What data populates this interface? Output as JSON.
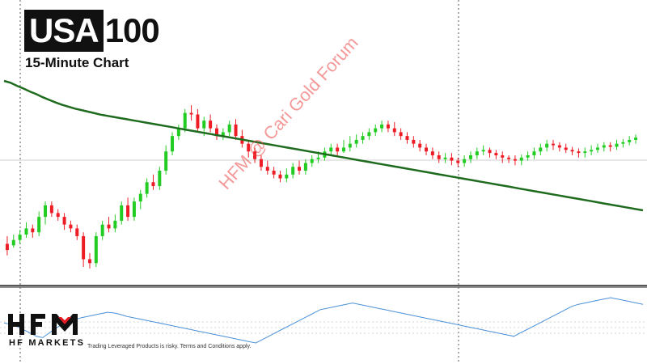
{
  "header": {
    "title_dark": "USA",
    "title_light": "100",
    "subtitle": "15-Minute Chart"
  },
  "watermark": "HFM @ Cari Gold Forum",
  "logo": {
    "name": "HFM",
    "sub": "HF MARKETS"
  },
  "disclaimer": "Trading Leveraged Products is risky. Terms and Conditions apply.",
  "chart_data": [
    {
      "type": "candlestick",
      "title": "USA100",
      "subtitle": "15-Minute Chart",
      "colors": {
        "up": "#22cc22",
        "down": "#ee1c25",
        "ma": "#1e6b1e"
      },
      "grid": false,
      "reference_line": "dotted horizontal",
      "vertical_markers": 2,
      "candles": [
        [
          0,
          150,
          142,
          160,
          135
        ],
        [
          1,
          148,
          155,
          162,
          145
        ],
        [
          2,
          155,
          162,
          168,
          150
        ],
        [
          3,
          162,
          170,
          178,
          158
        ],
        [
          4,
          170,
          165,
          175,
          158
        ],
        [
          5,
          165,
          185,
          192,
          160
        ],
        [
          6,
          185,
          200,
          205,
          175
        ],
        [
          7,
          200,
          190,
          205,
          185
        ],
        [
          8,
          190,
          185,
          195,
          180
        ],
        [
          9,
          185,
          175,
          190,
          168
        ],
        [
          10,
          175,
          170,
          180,
          165
        ],
        [
          11,
          170,
          160,
          175,
          155
        ],
        [
          12,
          160,
          130,
          165,
          120
        ],
        [
          13,
          130,
          125,
          138,
          118
        ],
        [
          14,
          125,
          160,
          165,
          120
        ],
        [
          15,
          160,
          175,
          180,
          155
        ],
        [
          16,
          175,
          170,
          185,
          165
        ],
        [
          17,
          170,
          180,
          188,
          165
        ],
        [
          18,
          180,
          200,
          205,
          175
        ],
        [
          19,
          200,
          185,
          210,
          180
        ],
        [
          20,
          185,
          205,
          210,
          180
        ],
        [
          21,
          205,
          215,
          220,
          195
        ],
        [
          22,
          215,
          230,
          235,
          210
        ],
        [
          23,
          230,
          225,
          240,
          220
        ],
        [
          24,
          225,
          245,
          250,
          220
        ],
        [
          25,
          245,
          270,
          278,
          240
        ],
        [
          26,
          270,
          290,
          295,
          265
        ],
        [
          27,
          290,
          300,
          305,
          285
        ],
        [
          28,
          300,
          320,
          325,
          295
        ],
        [
          29,
          320,
          318,
          330,
          310
        ],
        [
          30,
          318,
          300,
          325,
          295
        ],
        [
          31,
          300,
          310,
          315,
          290
        ],
        [
          32,
          310,
          300,
          318,
          295
        ],
        [
          33,
          300,
          290,
          305,
          285
        ],
        [
          34,
          290,
          295,
          300,
          285
        ],
        [
          35,
          295,
          305,
          310,
          290
        ],
        [
          36,
          305,
          290,
          312,
          285
        ],
        [
          37,
          290,
          280,
          298,
          275
        ],
        [
          38,
          280,
          270,
          285,
          262
        ],
        [
          39,
          270,
          260,
          275,
          255
        ],
        [
          40,
          260,
          250,
          265,
          245
        ],
        [
          41,
          250,
          245,
          258,
          240
        ],
        [
          42,
          245,
          240,
          250,
          235
        ],
        [
          43,
          240,
          235,
          245,
          230
        ],
        [
          44,
          235,
          240,
          248,
          230
        ],
        [
          45,
          240,
          250,
          255,
          235
        ],
        [
          46,
          250,
          245,
          258,
          240
        ],
        [
          47,
          245,
          255,
          260,
          240
        ],
        [
          48,
          255,
          260,
          265,
          250
        ],
        [
          49,
          260,
          262,
          270,
          255
        ],
        [
          50,
          262,
          270,
          275,
          258
        ],
        [
          51,
          270,
          275,
          280,
          265
        ],
        [
          52,
          275,
          270,
          280,
          265
        ],
        [
          53,
          270,
          275,
          285,
          268
        ],
        [
          54,
          275,
          280,
          290,
          270
        ],
        [
          55,
          280,
          285,
          292,
          275
        ],
        [
          56,
          285,
          290,
          295,
          280
        ],
        [
          57,
          290,
          295,
          300,
          285
        ],
        [
          58,
          295,
          300,
          305,
          290
        ],
        [
          59,
          300,
          305,
          310,
          295
        ],
        [
          60,
          305,
          300,
          310,
          295
        ],
        [
          61,
          300,
          295,
          308,
          290
        ],
        [
          62,
          295,
          290,
          300,
          285
        ],
        [
          63,
          290,
          285,
          295,
          280
        ],
        [
          64,
          285,
          280,
          290,
          275
        ],
        [
          65,
          280,
          275,
          285,
          270
        ],
        [
          66,
          275,
          270,
          280,
          265
        ],
        [
          67,
          270,
          265,
          275,
          260
        ],
        [
          68,
          265,
          260,
          270,
          255
        ],
        [
          69,
          260,
          262,
          268,
          255
        ],
        [
          70,
          262,
          258,
          268,
          252
        ],
        [
          71,
          258,
          255,
          262,
          250
        ],
        [
          72,
          255,
          260,
          265,
          250
        ],
        [
          73,
          260,
          265,
          270,
          255
        ],
        [
          74,
          265,
          270,
          275,
          260
        ],
        [
          75,
          270,
          272,
          278,
          265
        ],
        [
          76,
          272,
          268,
          275,
          262
        ],
        [
          77,
          268,
          265,
          272,
          260
        ],
        [
          78,
          265,
          262,
          270,
          255
        ],
        [
          79,
          262,
          260,
          265,
          255
        ],
        [
          80,
          260,
          258,
          265,
          252
        ],
        [
          81,
          258,
          262,
          266,
          252
        ],
        [
          82,
          262,
          265,
          270,
          258
        ],
        [
          83,
          265,
          270,
          275,
          260
        ],
        [
          84,
          270,
          275,
          280,
          265
        ],
        [
          85,
          275,
          280,
          285,
          270
        ],
        [
          86,
          280,
          278,
          285,
          272
        ],
        [
          87,
          278,
          275,
          282,
          270
        ],
        [
          88,
          275,
          272,
          280,
          268
        ],
        [
          89,
          272,
          270,
          276,
          265
        ],
        [
          90,
          270,
          268,
          274,
          262
        ],
        [
          91,
          268,
          270,
          275,
          262
        ],
        [
          92,
          270,
          272,
          278,
          265
        ],
        [
          93,
          272,
          275,
          280,
          268
        ],
        [
          94,
          275,
          278,
          282,
          270
        ],
        [
          95,
          278,
          276,
          282,
          270
        ],
        [
          96,
          276,
          280,
          285,
          272
        ],
        [
          97,
          280,
          282,
          286,
          275
        ],
        [
          98,
          282,
          285,
          290,
          278
        ],
        [
          99,
          285,
          288,
          292,
          280
        ]
      ],
      "ma_values": [
        5,
        10,
        18,
        25,
        33,
        40,
        48,
        55,
        62,
        68,
        73,
        78,
        82,
        86,
        90,
        94,
        97,
        100,
        103,
        106,
        109,
        112,
        115,
        118,
        121,
        124,
        127,
        130,
        133,
        136,
        139,
        142,
        145,
        148,
        151,
        154,
        157,
        160,
        163,
        166,
        169,
        172,
        175,
        178,
        181,
        184,
        187,
        190,
        193,
        196,
        199,
        202,
        205,
        208,
        211,
        214,
        217,
        220,
        223,
        226,
        229,
        232,
        235,
        238,
        241,
        244,
        247,
        250,
        253,
        256,
        259,
        262,
        265,
        268,
        271,
        274,
        277,
        280,
        283,
        286,
        289,
        292,
        295,
        298,
        301,
        304,
        307,
        310,
        313,
        316,
        319,
        322,
        325,
        328,
        331,
        334,
        337,
        340,
        343,
        346
      ],
      "indicator": [
        50,
        48,
        45,
        40,
        35,
        30,
        28,
        35,
        42,
        48,
        52,
        55,
        58,
        60,
        62,
        64,
        66,
        65,
        63,
        60,
        58,
        56,
        54,
        52,
        50,
        48,
        46,
        44,
        42,
        40,
        38,
        36,
        34,
        32,
        30,
        28,
        26,
        24,
        22,
        20,
        25,
        30,
        35,
        40,
        45,
        50,
        55,
        60,
        65,
        70,
        72,
        74,
        76,
        78,
        80,
        78,
        76,
        74,
        72,
        70,
        68,
        66,
        64,
        62,
        60,
        58,
        56,
        54,
        52,
        50,
        48,
        46,
        44,
        42,
        40,
        38,
        36,
        34,
        32,
        30,
        35,
        40,
        45,
        50,
        55,
        60,
        65,
        70,
        75,
        78,
        80,
        82,
        84,
        86,
        88,
        86,
        84,
        82,
        80,
        78
      ]
    }
  ]
}
